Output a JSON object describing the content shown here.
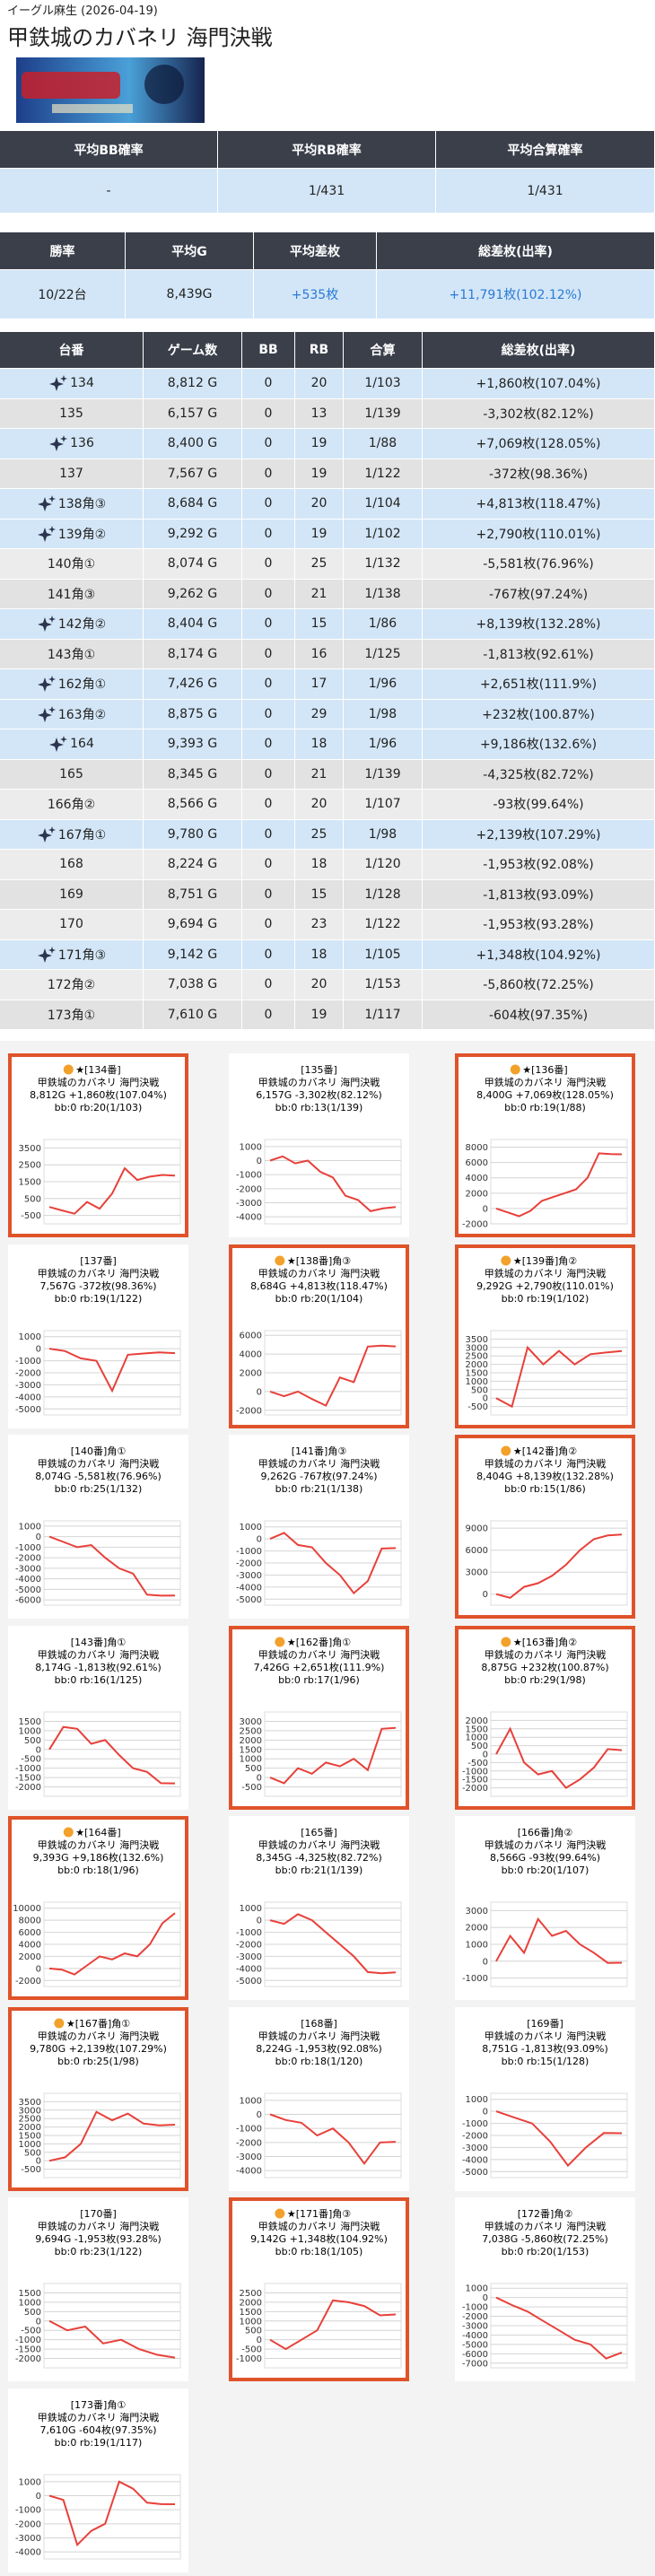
{
  "header": {
    "shop": "イーグル麻生 (2026-04-19)",
    "title": "甲鉄城のカバネリ 海門決戦"
  },
  "summary1": {
    "headers": [
      "平均BB確率",
      "平均RB確率",
      "平均合算確率"
    ],
    "row": [
      "-",
      "1/431",
      "1/431"
    ]
  },
  "summary2": {
    "headers": [
      "勝率",
      "平均G",
      "平均差枚",
      "総差枚(出率)"
    ],
    "row": [
      "10/22台",
      "8,439G",
      "+535枚",
      "+11,791枚(102.12%)"
    ]
  },
  "table": {
    "headers": [
      "台番",
      "ゲーム数",
      "BB",
      "RB",
      "合算",
      "総差枚(出率)"
    ],
    "rows": [
      {
        "cells": [
          "134",
          "8,812 G",
          "0",
          "20",
          "1/103",
          "+1,860枚(107.04%)"
        ],
        "highlight": true
      },
      {
        "cells": [
          "135",
          "6,157 G",
          "0",
          "13",
          "1/139",
          "-3,302枚(82.12%)"
        ],
        "highlight": false
      },
      {
        "cells": [
          "136",
          "8,400 G",
          "0",
          "19",
          "1/88",
          "+7,069枚(128.05%)"
        ],
        "highlight": true
      },
      {
        "cells": [
          "137",
          "7,567 G",
          "0",
          "19",
          "1/122",
          "-372枚(98.36%)"
        ],
        "highlight": false
      },
      {
        "cells": [
          "138角③",
          "8,684 G",
          "0",
          "20",
          "1/104",
          "+4,813枚(118.47%)"
        ],
        "highlight": true
      },
      {
        "cells": [
          "139角②",
          "9,292 G",
          "0",
          "19",
          "1/102",
          "+2,790枚(110.01%)"
        ],
        "highlight": true
      },
      {
        "cells": [
          "140角①",
          "8,074 G",
          "0",
          "25",
          "1/132",
          "-5,581枚(76.96%)"
        ],
        "highlight": false
      },
      {
        "cells": [
          "141角③",
          "9,262 G",
          "0",
          "21",
          "1/138",
          "-767枚(97.24%)"
        ],
        "highlight": false
      },
      {
        "cells": [
          "142角②",
          "8,404 G",
          "0",
          "15",
          "1/86",
          "+8,139枚(132.28%)"
        ],
        "highlight": true
      },
      {
        "cells": [
          "143角①",
          "8,174 G",
          "0",
          "16",
          "1/125",
          "-1,813枚(92.61%)"
        ],
        "highlight": false
      },
      {
        "cells": [
          "162角①",
          "7,426 G",
          "0",
          "17",
          "1/96",
          "+2,651枚(111.9%)"
        ],
        "highlight": true
      },
      {
        "cells": [
          "163角②",
          "8,875 G",
          "0",
          "29",
          "1/98",
          "+232枚(100.87%)"
        ],
        "highlight": true
      },
      {
        "cells": [
          "164",
          "9,393 G",
          "0",
          "18",
          "1/96",
          "+9,186枚(132.6%)"
        ],
        "highlight": true
      },
      {
        "cells": [
          "165",
          "8,345 G",
          "0",
          "21",
          "1/139",
          "-4,325枚(82.72%)"
        ],
        "highlight": false
      },
      {
        "cells": [
          "166角②",
          "8,566 G",
          "0",
          "20",
          "1/107",
          "-93枚(99.64%)"
        ],
        "highlight": false
      },
      {
        "cells": [
          "167角①",
          "9,780 G",
          "0",
          "25",
          "1/98",
          "+2,139枚(107.29%)"
        ],
        "highlight": true
      },
      {
        "cells": [
          "168",
          "8,224 G",
          "0",
          "18",
          "1/120",
          "-1,953枚(92.08%)"
        ],
        "highlight": false
      },
      {
        "cells": [
          "169",
          "8,751 G",
          "0",
          "15",
          "1/128",
          "-1,813枚(93.09%)"
        ],
        "highlight": false
      },
      {
        "cells": [
          "170",
          "9,694 G",
          "0",
          "23",
          "1/122",
          "-1,953枚(93.28%)"
        ],
        "highlight": false
      },
      {
        "cells": [
          "171角③",
          "9,142 G",
          "0",
          "18",
          "1/105",
          "+1,348枚(104.92%)"
        ],
        "highlight": true
      },
      {
        "cells": [
          "172角②",
          "7,038 G",
          "0",
          "20",
          "1/153",
          "-5,860枚(72.25%)"
        ],
        "highlight": false
      },
      {
        "cells": [
          "173角①",
          "7,610 G",
          "0",
          "19",
          "1/117",
          "-604枚(97.35%)"
        ],
        "highlight": false
      }
    ]
  },
  "cards": [
    {
      "title": "★[134番]",
      "machine": "甲鉄城のカバネリ 海門決戦",
      "stats": "8,812G +1,860枚(107.04%)",
      "counts": "bb:0 rb:20(1/103)",
      "highlight": true,
      "chart": {
        "type": "line",
        "color": "#e8403a",
        "values": [
          0,
          -200,
          -400,
          300,
          -100,
          800,
          2300,
          1600,
          1800,
          1900,
          1860
        ],
        "ylim": [
          -1000,
          4000
        ],
        "yticks": [
          3500,
          2500,
          1500,
          500,
          -500
        ]
      }
    },
    {
      "title": "[135番]",
      "machine": "甲鉄城のカバネリ 海門決戦",
      "stats": "6,157G -3,302枚(82.12%)",
      "counts": "bb:0 rb:13(1/139)",
      "highlight": false,
      "chart": {
        "type": "line",
        "color": "#e8403a",
        "values": [
          0,
          300,
          -200,
          0,
          -800,
          -1200,
          -2500,
          -2800,
          -3600,
          -3400,
          -3302
        ],
        "ylim": [
          -4500,
          1500
        ],
        "yticks": [
          1000,
          0,
          -1000,
          -2000,
          -3000,
          -4000
        ]
      }
    },
    {
      "title": "★[136番]",
      "machine": "甲鉄城のカバネリ 海門決戦",
      "stats": "8,400G +7,069枚(128.05%)",
      "counts": "bb:0 rb:19(1/88)",
      "highlight": true,
      "chart": {
        "type": "line",
        "color": "#e8403a",
        "values": [
          0,
          -500,
          -1000,
          -300,
          1000,
          1500,
          2000,
          2500,
          4000,
          7200,
          7100,
          7069
        ],
        "ylim": [
          -2000,
          9000
        ],
        "yticks": [
          8000,
          6000,
          4000,
          2000,
          0,
          -2000
        ]
      }
    },
    {
      "title": "[137番]",
      "machine": "甲鉄城のカバネリ 海門決戦",
      "stats": "7,567G -372枚(98.36%)",
      "counts": "bb:0 rb:19(1/122)",
      "highlight": false,
      "chart": {
        "type": "line",
        "color": "#e8403a",
        "values": [
          0,
          -200,
          -800,
          -1000,
          -3500,
          -500,
          -400,
          -300,
          -372
        ],
        "ylim": [
          -5500,
          1500
        ],
        "yticks": [
          1000,
          0,
          -1000,
          -2000,
          -3000,
          -4000,
          -5000
        ]
      }
    },
    {
      "title": "★[138番]角③",
      "machine": "甲鉄城のカバネリ 海門決戦",
      "stats": "8,684G +4,813枚(118.47%)",
      "counts": "bb:0 rb:20(1/104)",
      "highlight": true,
      "chart": {
        "type": "line",
        "color": "#e8403a",
        "values": [
          0,
          -500,
          0,
          -800,
          -1500,
          1500,
          1000,
          4800,
          4900,
          4813
        ],
        "ylim": [
          -2500,
          6500
        ],
        "yticks": [
          6000,
          4000,
          2000,
          0,
          -2000
        ]
      }
    },
    {
      "title": "★[139番]角②",
      "machine": "甲鉄城のカバネリ 海門決戦",
      "stats": "9,292G +2,790枚(110.01%)",
      "counts": "bb:0 rb:19(1/102)",
      "highlight": true,
      "chart": {
        "type": "line",
        "color": "#e8403a",
        "values": [
          0,
          -500,
          3000,
          2000,
          2800,
          2000,
          2600,
          2700,
          2790
        ],
        "ylim": [
          -1000,
          4000
        ],
        "yticks": [
          3500,
          3000,
          2500,
          2000,
          1500,
          1000,
          500,
          0,
          -500
        ]
      }
    },
    {
      "title": "[140番]角①",
      "machine": "甲鉄城のカバネリ 海門決戦",
      "stats": "8,074G -5,581枚(76.96%)",
      "counts": "bb:0 rb:25(1/132)",
      "highlight": false,
      "chart": {
        "type": "line",
        "color": "#e8403a",
        "values": [
          0,
          -500,
          -1000,
          -800,
          -2000,
          -3000,
          -3500,
          -5500,
          -5600,
          -5581
        ],
        "ylim": [
          -6500,
          1500
        ],
        "yticks": [
          1000,
          0,
          -1000,
          -2000,
          -3000,
          -4000,
          -5000,
          -6000
        ]
      }
    },
    {
      "title": "[141番]角③",
      "machine": "甲鉄城のカバネリ 海門決戦",
      "stats": "9,262G -767枚(97.24%)",
      "counts": "bb:0 rb:21(1/138)",
      "highlight": false,
      "chart": {
        "type": "line",
        "color": "#e8403a",
        "values": [
          0,
          500,
          -500,
          -700,
          -2000,
          -3000,
          -4500,
          -3500,
          -800,
          -767
        ],
        "ylim": [
          -5500,
          1500
        ],
        "yticks": [
          1000,
          0,
          -1000,
          -2000,
          -3000,
          -4000,
          -5000
        ]
      }
    },
    {
      "title": "★[142番]角②",
      "machine": "甲鉄城のカバネリ 海門決戦",
      "stats": "8,404G +8,139枚(132.28%)",
      "counts": "bb:0 rb:15(1/86)",
      "highlight": true,
      "chart": {
        "type": "line",
        "color": "#e8403a",
        "values": [
          0,
          -500,
          1000,
          1500,
          2500,
          4000,
          6000,
          7500,
          8000,
          8139
        ],
        "ylim": [
          -1500,
          10000
        ],
        "yticks": [
          9000,
          6000,
          3000,
          0
        ]
      }
    },
    {
      "title": "[143番]角①",
      "machine": "甲鉄城のカバネリ 海門決戦",
      "stats": "8,174G -1,813枚(92.61%)",
      "counts": "bb:0 rb:16(1/125)",
      "highlight": false,
      "chart": {
        "type": "line",
        "color": "#e8403a",
        "values": [
          0,
          1200,
          1100,
          300,
          500,
          -300,
          -1000,
          -1200,
          -1800,
          -1813
        ],
        "ylim": [
          -2500,
          2000
        ],
        "yticks": [
          1500,
          1000,
          500,
          0,
          -500,
          -1000,
          -1500,
          -2000
        ]
      }
    },
    {
      "title": "★[162番]角①",
      "machine": "甲鉄城のカバネリ 海門決戦",
      "stats": "7,426G +2,651枚(111.9%)",
      "counts": "bb:0 rb:17(1/96)",
      "highlight": true,
      "chart": {
        "type": "line",
        "color": "#e8403a",
        "values": [
          0,
          -300,
          500,
          200,
          800,
          600,
          1000,
          400,
          2600,
          2651
        ],
        "ylim": [
          -1000,
          3500
        ],
        "yticks": [
          3000,
          2500,
          2000,
          1500,
          1000,
          500,
          0,
          -500
        ]
      }
    },
    {
      "title": "★[163番]角②",
      "machine": "甲鉄城のカバネリ 海門決戦",
      "stats": "8,875G +232枚(100.87%)",
      "counts": "bb:0 rb:29(1/98)",
      "highlight": true,
      "chart": {
        "type": "line",
        "color": "#e8403a",
        "values": [
          0,
          1500,
          -500,
          -1200,
          -1000,
          -2000,
          -1500,
          -800,
          300,
          232
        ],
        "ylim": [
          -2500,
          2500
        ],
        "yticks": [
          2000,
          1500,
          1000,
          500,
          0,
          -500,
          -1000,
          -1500,
          -2000
        ]
      }
    },
    {
      "title": "★[164番]",
      "machine": "甲鉄城のカバネリ 海門決戦",
      "stats": "9,393G +9,186枚(132.6%)",
      "counts": "bb:0 rb:18(1/96)",
      "highlight": true,
      "chart": {
        "type": "line",
        "color": "#e8403a",
        "values": [
          0,
          -200,
          -1000,
          500,
          2000,
          1500,
          2500,
          2000,
          4000,
          7500,
          9186
        ],
        "ylim": [
          -3000,
          11000
        ],
        "yticks": [
          10000,
          8000,
          6000,
          4000,
          2000,
          0,
          -2000
        ]
      }
    },
    {
      "title": "[165番]",
      "machine": "甲鉄城のカバネリ 海門決戦",
      "stats": "8,345G -4,325枚(82.72%)",
      "counts": "bb:0 rb:21(1/139)",
      "highlight": false,
      "chart": {
        "type": "line",
        "color": "#e8403a",
        "values": [
          0,
          -300,
          500,
          0,
          -1000,
          -2000,
          -3000,
          -4300,
          -4400,
          -4325
        ],
        "ylim": [
          -5500,
          1500
        ],
        "yticks": [
          1000,
          0,
          -1000,
          -2000,
          -3000,
          -4000,
          -5000
        ]
      }
    },
    {
      "title": "[166番]角②",
      "machine": "甲鉄城のカバネリ 海門決戦",
      "stats": "8,566G -93枚(99.64%)",
      "counts": "bb:0 rb:20(1/107)",
      "highlight": false,
      "chart": {
        "type": "line",
        "color": "#e8403a",
        "values": [
          0,
          1500,
          500,
          2500,
          1500,
          1800,
          1000,
          500,
          -100,
          -93
        ],
        "ylim": [
          -1500,
          3500
        ],
        "yticks": [
          3000,
          2000,
          1000,
          0,
          -1000
        ]
      }
    },
    {
      "title": "★[167番]角①",
      "machine": "甲鉄城のカバネリ 海門決戦",
      "stats": "9,780G +2,139枚(107.29%)",
      "counts": "bb:0 rb:25(1/98)",
      "highlight": true,
      "chart": {
        "type": "line",
        "color": "#e8403a",
        "values": [
          0,
          200,
          1000,
          2900,
          2400,
          2800,
          2200,
          2100,
          2139
        ],
        "ylim": [
          -1000,
          4000
        ],
        "yticks": [
          3500,
          3000,
          2500,
          2000,
          1500,
          1000,
          500,
          0,
          -500
        ]
      }
    },
    {
      "title": "[168番]",
      "machine": "甲鉄城のカバネリ 海門決戦",
      "stats": "8,224G -1,953枚(92.08%)",
      "counts": "bb:0 rb:18(1/120)",
      "highlight": false,
      "chart": {
        "type": "line",
        "color": "#e8403a",
        "values": [
          0,
          -400,
          -600,
          -1500,
          -1000,
          -2000,
          -3500,
          -2000,
          -1953
        ],
        "ylim": [
          -4500,
          1500
        ],
        "yticks": [
          1000,
          0,
          -1000,
          -2000,
          -3000,
          -4000
        ]
      }
    },
    {
      "title": "[169番]",
      "machine": "甲鉄城のカバネリ 海門決戦",
      "stats": "8,751G -1,813枚(93.09%)",
      "counts": "bb:0 rb:15(1/128)",
      "highlight": false,
      "chart": {
        "type": "line",
        "color": "#e8403a",
        "values": [
          0,
          -500,
          -1000,
          -2500,
          -4500,
          -3000,
          -1800,
          -1813
        ],
        "ylim": [
          -5500,
          1500
        ],
        "yticks": [
          1000,
          0,
          -1000,
          -2000,
          -3000,
          -4000,
          -5000
        ]
      }
    },
    {
      "title": "[170番]",
      "machine": "甲鉄城のカバネリ 海門決戦",
      "stats": "9,694G -1,953枚(93.28%)",
      "counts": "bb:0 rb:23(1/122)",
      "highlight": false,
      "chart": {
        "type": "line",
        "color": "#e8403a",
        "values": [
          0,
          -500,
          -300,
          -1200,
          -1000,
          -1500,
          -1800,
          -1953
        ],
        "ylim": [
          -2500,
          2000
        ],
        "yticks": [
          1500,
          1000,
          500,
          0,
          -500,
          -1000,
          -1500,
          -2000
        ]
      }
    },
    {
      "title": "★[171番]角③",
      "machine": "甲鉄城のカバネリ 海門決戦",
      "stats": "9,142G +1,348枚(104.92%)",
      "counts": "bb:0 rb:18(1/105)",
      "highlight": true,
      "chart": {
        "type": "line",
        "color": "#e8403a",
        "values": [
          0,
          -500,
          0,
          500,
          2100,
          2000,
          1800,
          1300,
          1348
        ],
        "ylim": [
          -1500,
          3000
        ],
        "yticks": [
          2500,
          2000,
          1500,
          1000,
          500,
          0,
          -500,
          -1000
        ]
      }
    },
    {
      "title": "[172番]角②",
      "machine": "甲鉄城のカバネリ 海門決戦",
      "stats": "7,038G -5,860枚(72.25%)",
      "counts": "bb:0 rb:20(1/153)",
      "highlight": false,
      "chart": {
        "type": "line",
        "color": "#e8403a",
        "values": [
          0,
          -800,
          -1500,
          -2500,
          -3500,
          -4500,
          -5000,
          -6500,
          -5860
        ],
        "ylim": [
          -7500,
          1500
        ],
        "yticks": [
          1000,
          0,
          -1000,
          -2000,
          -3000,
          -4000,
          -5000,
          -6000,
          -7000
        ]
      }
    },
    {
      "title": "[173番]角①",
      "machine": "甲鉄城のカバネリ 海門決戦",
      "stats": "7,610G -604枚(97.35%)",
      "counts": "bb:0 rb:19(1/117)",
      "highlight": false,
      "chart": {
        "type": "line",
        "color": "#e8403a",
        "values": [
          0,
          -300,
          -3500,
          -2500,
          -2000,
          1000,
          500,
          -500,
          -600,
          -604
        ],
        "ylim": [
          -4500,
          1500
        ],
        "yticks": [
          1000,
          0,
          -1000,
          -2000,
          -3000,
          -4000
        ]
      }
    }
  ]
}
